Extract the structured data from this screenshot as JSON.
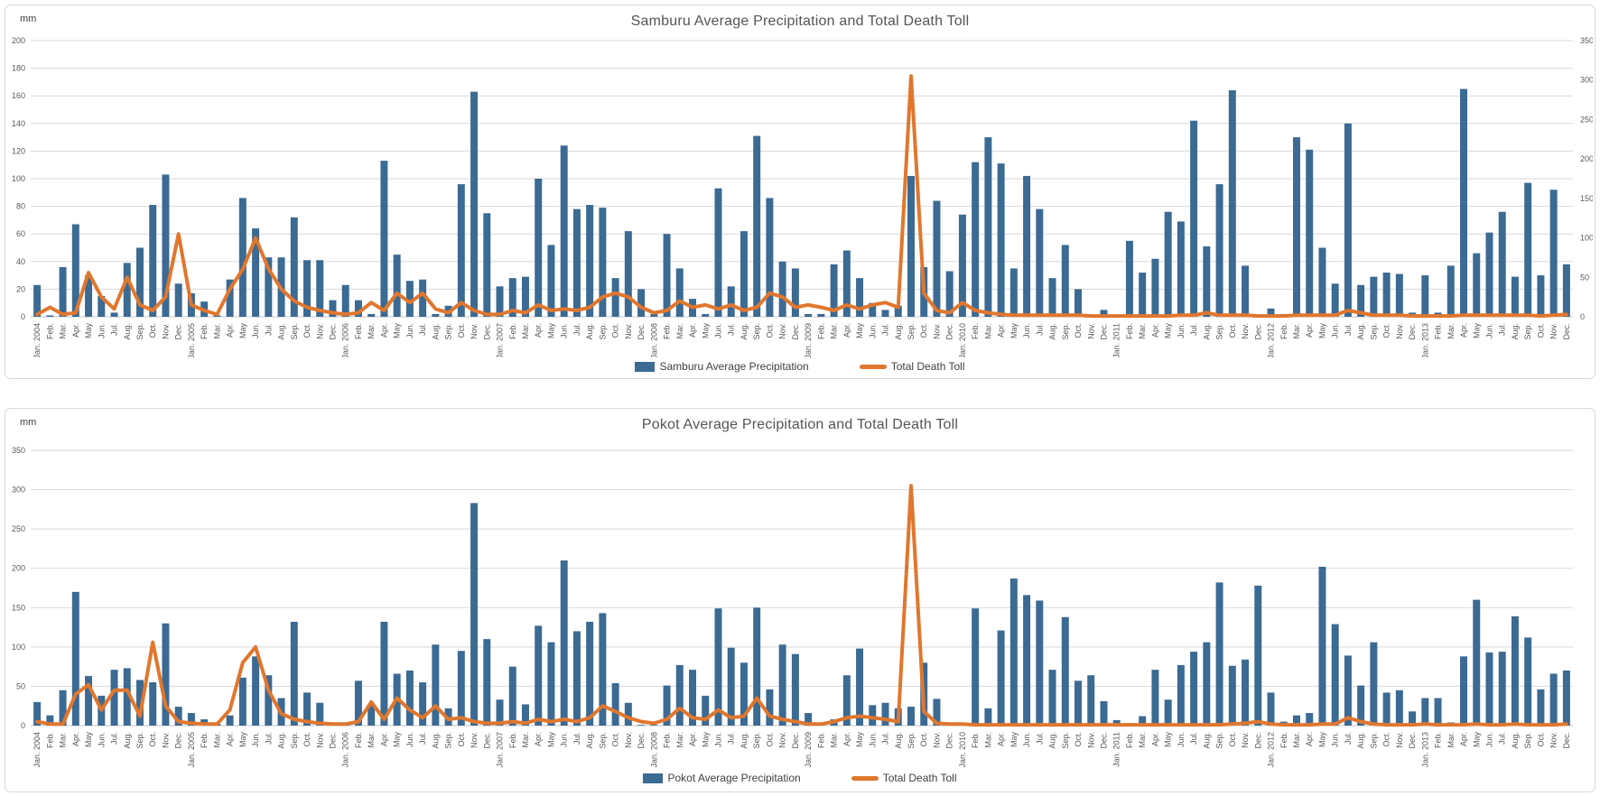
{
  "colors": {
    "bar": "#3b6a93",
    "line": "#e0772e",
    "grid": "#d9d9d9",
    "axis_text": "#595959",
    "title_text": "#555555"
  },
  "months": [
    "Jan. 2004",
    "Feb.",
    "Mar.",
    "Apr.",
    "May",
    "Jun.",
    "Jul.",
    "Aug.",
    "Sep.",
    "Oct.",
    "Nov.",
    "Dec.",
    "Jan. 2005",
    "Feb.",
    "Mar.",
    "Apr.",
    "May",
    "Jun.",
    "Jul.",
    "Aug.",
    "Sep.",
    "Oct.",
    "Nov.",
    "Dec.",
    "Jan. 2006",
    "Feb.",
    "Mar.",
    "Apr.",
    "May",
    "Jun.",
    "Jul.",
    "Aug.",
    "Sep.",
    "Oct.",
    "Nov.",
    "Dec.",
    "Jan. 2007",
    "Feb.",
    "Mar.",
    "Apr.",
    "May",
    "Jun.",
    "Jul.",
    "Aug.",
    "Sep.",
    "Oct.",
    "Nov.",
    "Dec.",
    "Jan. 2008",
    "Feb.",
    "Mar.",
    "Apr.",
    "May",
    "Jun.",
    "Jul.",
    "Aug.",
    "Sep.",
    "Oct.",
    "Nov.",
    "Dec.",
    "Jan. 2009",
    "Feb.",
    "Mar.",
    "Apr.",
    "May",
    "Jun.",
    "Jul.",
    "Aug.",
    "Sep.",
    "Oct.",
    "Nov.",
    "Dec.",
    "Jan. 2010",
    "Feb.",
    "Mar.",
    "Apr.",
    "May",
    "Jun.",
    "Jul.",
    "Aug.",
    "Sep.",
    "Oct.",
    "Nov.",
    "Dec.",
    "Jan. 2011",
    "Feb.",
    "Mar.",
    "Apr.",
    "May",
    "Jun.",
    "Jul.",
    "Aug.",
    "Sep.",
    "Oct.",
    "Nov.",
    "Dec.",
    "Jan. 2012",
    "Feb.",
    "Mar.",
    "Apr.",
    "May",
    "Jun.",
    "Jul.",
    "Aug.",
    "Sep.",
    "Oct.",
    "Nov.",
    "Dec.",
    "Jan. 2013",
    "Feb.",
    "Mar.",
    "Apr.",
    "May",
    "Jun.",
    "Jul.",
    "Aug.",
    "Sep.",
    "Oct.",
    "Nov.",
    "Dec."
  ],
  "chart_data": [
    {
      "type": "bar+line",
      "title": "Samburu Average Precipitation and Total Death Toll",
      "unit_label": "mm",
      "legend": {
        "bar_label": "Samburu Average Precipitation",
        "line_label": "Total Death Toll"
      },
      "left_axis": {
        "min": 0,
        "max": 200,
        "step": 20,
        "ticks": [
          0,
          20,
          40,
          60,
          80,
          100,
          120,
          140,
          160,
          180,
          200
        ]
      },
      "right_axis": {
        "min": 0,
        "max": 350,
        "step": 50,
        "ticks": [
          0,
          50,
          100,
          150,
          200,
          250,
          300,
          350
        ]
      },
      "line_axis": "right",
      "series": [
        {
          "name": "Samburu Average Precipitation",
          "kind": "bar",
          "axis": "left",
          "values": [
            23,
            1,
            36,
            67,
            30,
            15,
            3,
            39,
            50,
            81,
            103,
            24,
            17,
            11,
            1,
            27,
            86,
            64,
            43,
            43,
            72,
            41,
            41,
            12,
            23,
            12,
            2,
            113,
            45,
            26,
            27,
            2,
            8,
            96,
            163,
            75,
            22,
            28,
            29,
            100,
            52,
            124,
            78,
            81,
            79,
            28,
            62,
            20,
            2,
            60,
            35,
            13,
            2,
            93,
            22,
            62,
            131,
            86,
            40,
            35,
            2,
            2,
            38,
            48,
            28,
            10,
            5,
            8,
            102,
            36,
            84,
            33,
            74,
            112,
            130,
            111,
            35,
            102,
            78,
            28,
            52,
            20,
            1,
            5,
            1,
            55,
            32,
            42,
            76,
            69,
            142,
            51,
            96,
            164,
            37,
            1,
            6,
            2,
            130,
            121,
            50,
            24,
            140,
            23,
            29,
            32,
            31,
            3,
            30,
            3,
            37,
            165,
            46,
            61,
            76,
            29,
            97,
            30,
            92,
            38
          ]
        },
        {
          "name": "Total Death Toll",
          "kind": "line",
          "axis": "right",
          "values": [
            3,
            12,
            3,
            5,
            56,
            25,
            10,
            50,
            15,
            8,
            25,
            105,
            15,
            8,
            3,
            35,
            60,
            100,
            61,
            35,
            20,
            12,
            8,
            5,
            3,
            5,
            18,
            8,
            30,
            18,
            30,
            10,
            5,
            18,
            8,
            3,
            3,
            8,
            5,
            15,
            8,
            10,
            8,
            12,
            25,
            30,
            25,
            12,
            5,
            8,
            20,
            12,
            15,
            10,
            15,
            8,
            12,
            30,
            25,
            12,
            15,
            12,
            8,
            15,
            10,
            15,
            18,
            12,
            305,
            30,
            8,
            5,
            18,
            8,
            5,
            3,
            2,
            2,
            2,
            2,
            2,
            2,
            1,
            1,
            1,
            1,
            1,
            1,
            1,
            2,
            2,
            5,
            2,
            2,
            2,
            1,
            1,
            1,
            2,
            2,
            2,
            2,
            8,
            5,
            2,
            2,
            2,
            1,
            1,
            1,
            1,
            2,
            2,
            2,
            2,
            2,
            2,
            1,
            2,
            3
          ]
        }
      ]
    },
    {
      "type": "bar+line",
      "title": "Pokot Average Precipitation and Total Death Toll",
      "unit_label": "mm",
      "legend": {
        "bar_label": "Pokot Average Precipitation",
        "line_label": "Total Death Toll"
      },
      "left_axis": {
        "min": 0,
        "max": 350,
        "step": 50,
        "ticks": [
          0,
          50,
          100,
          150,
          200,
          250,
          300,
          350
        ]
      },
      "right_axis": null,
      "line_axis": "left",
      "series": [
        {
          "name": "Pokot Average Precipitation",
          "kind": "bar",
          "axis": "left",
          "values": [
            30,
            13,
            45,
            170,
            63,
            38,
            71,
            73,
            58,
            55,
            130,
            24,
            16,
            8,
            2,
            13,
            61,
            88,
            64,
            35,
            132,
            42,
            29,
            2,
            1,
            57,
            26,
            132,
            66,
            70,
            55,
            103,
            22,
            95,
            283,
            110,
            33,
            75,
            27,
            127,
            106,
            210,
            120,
            132,
            143,
            54,
            29,
            1,
            1,
            51,
            77,
            71,
            38,
            149,
            99,
            80,
            150,
            46,
            103,
            91,
            16,
            1,
            8,
            64,
            98,
            26,
            29,
            22,
            24,
            80,
            34,
            2,
            3,
            149,
            22,
            121,
            187,
            166,
            159,
            71,
            138,
            57,
            64,
            31,
            7,
            3,
            12,
            71,
            33,
            77,
            94,
            106,
            182,
            76,
            84,
            178,
            42,
            5,
            13,
            16,
            202,
            129,
            89,
            51,
            106,
            42,
            45,
            18,
            35,
            35,
            4,
            88,
            160,
            93,
            94,
            139,
            112,
            46,
            66,
            70
          ]
        },
        {
          "name": "Total Death Toll",
          "kind": "line",
          "axis": "left",
          "values": [
            5,
            2,
            2,
            40,
            52,
            20,
            45,
            45,
            12,
            106,
            25,
            5,
            3,
            2,
            2,
            20,
            80,
            100,
            45,
            15,
            8,
            5,
            3,
            2,
            2,
            5,
            30,
            8,
            35,
            20,
            10,
            25,
            8,
            10,
            5,
            3,
            3,
            5,
            3,
            8,
            5,
            8,
            5,
            10,
            25,
            18,
            10,
            5,
            3,
            8,
            22,
            10,
            8,
            20,
            10,
            12,
            35,
            12,
            8,
            5,
            2,
            2,
            5,
            10,
            12,
            10,
            8,
            5,
            305,
            18,
            3,
            2,
            2,
            1,
            1,
            1,
            1,
            1,
            1,
            1,
            1,
            1,
            1,
            1,
            1,
            1,
            1,
            1,
            1,
            1,
            1,
            1,
            1,
            2,
            3,
            5,
            2,
            1,
            1,
            1,
            2,
            2,
            10,
            5,
            2,
            1,
            1,
            1,
            2,
            1,
            1,
            1,
            2,
            1,
            1,
            2,
            1,
            1,
            1,
            2
          ]
        }
      ]
    }
  ]
}
